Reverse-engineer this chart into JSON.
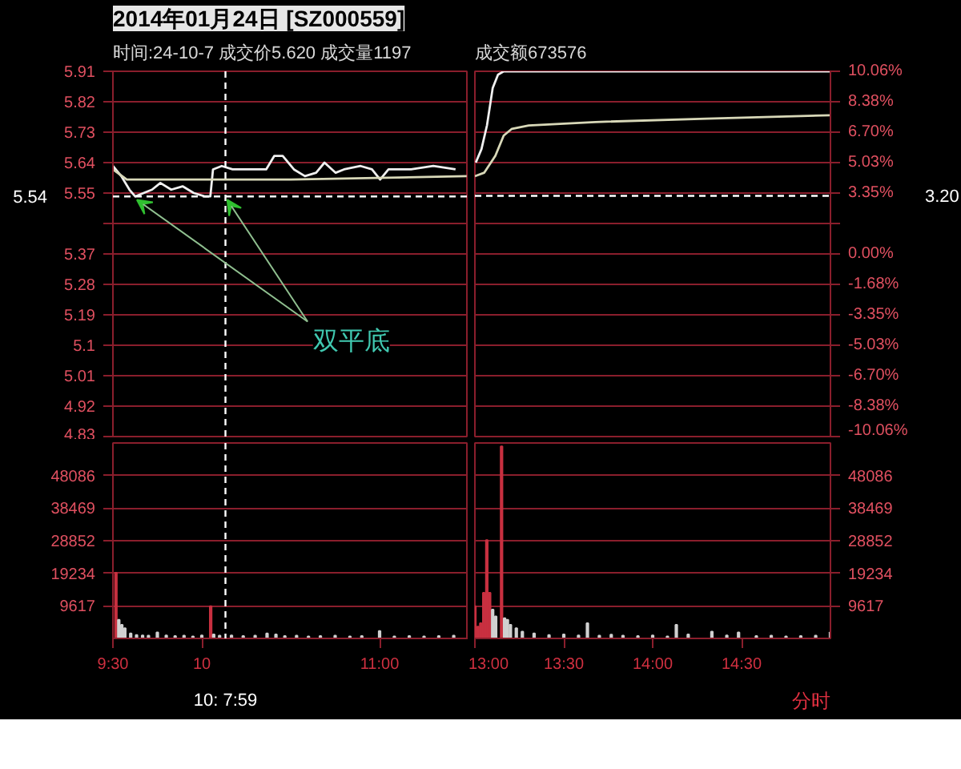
{
  "chart_data": [
    {
      "type": "line",
      "title": "2014年01月24日 [SZ000559]",
      "xlim": [
        9.5,
        11.5
      ],
      "tick_labels": "y",
      "grid": "y",
      "ylim": [
        4.83,
        5.91
      ],
      "yticks": [
        5.91,
        5.82,
        5.73,
        5.64,
        5.55,
        {
          "value": 5.46,
          "label": null
        },
        5.37,
        5.28,
        5.19,
        5.1,
        5.01,
        4.92,
        4.83
      ],
      "series": [
        {
          "color": "#f0f0f0",
          "x": [
            9.5,
            9.547,
            9.593,
            9.625,
            9.672,
            9.72,
            9.767,
            9.828,
            9.892,
            9.955,
            10.017,
            10.048,
            10.063,
            10.112,
            10.173,
            10.237,
            10.298,
            10.362,
            10.408,
            10.455,
            10.518,
            10.58,
            10.643,
            10.69,
            10.753,
            10.8,
            10.893,
            10.957,
            11.003,
            11.05,
            11.177,
            11.302,
            11.427
          ],
          "values": [
            5.63,
            5.6,
            5.56,
            5.54,
            5.55,
            5.56,
            5.58,
            5.56,
            5.57,
            5.55,
            5.54,
            5.54,
            5.62,
            5.63,
            5.62,
            5.62,
            5.62,
            5.62,
            5.66,
            5.66,
            5.62,
            5.6,
            5.61,
            5.64,
            5.61,
            5.62,
            5.63,
            5.62,
            5.59,
            5.62,
            5.62,
            5.63,
            5.62
          ]
        },
        {
          "color": "#d8d8b8",
          "x": [
            9.5,
            9.578,
            9.672,
            10.5,
            11.49
          ],
          "values": [
            5.62,
            5.59,
            5.59,
            5.59,
            5.6
          ]
        }
      ],
      "ref_lines": [
        {
          "axis": "x",
          "value": 10.133,
          "color": "#ffffff",
          "line_style": "dashed"
        },
        {
          "axis": "y",
          "value": 5.54,
          "label": "5.54",
          "color": "#ffffff",
          "line_style": "dashed"
        }
      ],
      "annotations": [
        "时间:24-10-7   成交价5.620   成交量1197",
        {
          "text": "双平底",
          "x": 9.625,
          "y": 5.54
        }
      ]
    },
    {
      "type": "line",
      "xlim": [
        13,
        15
      ],
      "tick_labels": false,
      "grid": "y",
      "ylim": [
        4.83,
        5.91
      ],
      "yticks": [
        5.91,
        5.82,
        5.73,
        5.64,
        5.55,
        5.46,
        5.37,
        5.28,
        5.19,
        5.1,
        5.01,
        4.92,
        4.83
      ],
      "y2lim": [
        -10.06,
        10.06
      ],
      "y2ticks": [
        {
          "value": 10.06,
          "label": "10.06%"
        },
        {
          "value": 8.38,
          "label": "8.38%"
        },
        {
          "value": 6.7,
          "label": "6.70%"
        },
        {
          "value": 5.03,
          "label": "5.03%"
        },
        {
          "value": 3.35,
          "label": "3.35%"
        },
        {
          "value": 1.68,
          "label": null
        },
        {
          "value": 0,
          "label": "0.00%"
        },
        {
          "value": -1.68,
          "label": "-1.68%"
        },
        {
          "value": -3.35,
          "label": "-3.35%"
        },
        {
          "value": -5.03,
          "label": "-5.03%"
        },
        {
          "value": -6.7,
          "label": "-6.70%"
        },
        {
          "value": -8.38,
          "label": "-8.38%"
        },
        {
          "value": -10.06,
          "label": "-10.06%"
        }
      ],
      "series": [
        {
          "color": "#f0f0f0",
          "x": [
            13.005,
            13.037,
            13.068,
            13.1,
            13.13,
            13.162,
            15
          ],
          "values": [
            5.64,
            5.68,
            5.75,
            5.86,
            5.9,
            5.91,
            5.91
          ]
        },
        {
          "color": "#d8d8b8",
          "x": [
            13.0,
            13.052,
            13.115,
            13.162,
            13.208,
            13.303,
            13.678,
            14.305,
            15
          ],
          "values": [
            5.6,
            5.61,
            5.66,
            5.72,
            5.74,
            5.75,
            5.76,
            5.77,
            5.78
          ]
        }
      ],
      "ref_lines": [
        {
          "axis": "y2",
          "value": 3.2,
          "label": "3.20",
          "color": "#ffffff",
          "line_style": "dashed"
        }
      ],
      "annotations": [
        "成交额673576"
      ]
    },
    {
      "type": "bar",
      "xlim": [
        9.5,
        11.5
      ],
      "grid": "y",
      "xticks": [
        {
          "value": 9.5,
          "label": "9:30"
        },
        {
          "value": 10,
          "label": "10"
        },
        {
          "value": 11,
          "label": "11:00"
        }
      ],
      "ylim": [
        0,
        57702
      ],
      "yticks": [
        9617,
        19234,
        28852,
        38469,
        48086
      ],
      "x": [
        9.517,
        9.533,
        9.55,
        9.567,
        9.6,
        9.633,
        9.667,
        9.7,
        9.75,
        9.8,
        9.85,
        9.9,
        9.95,
        10.0,
        10.05,
        10.067,
        10.1,
        10.167,
        10.233,
        10.3,
        10.367,
        10.417,
        10.467,
        10.533,
        10.6,
        10.667,
        10.75,
        10.833,
        10.9,
        11.0,
        11.083,
        11.167,
        11.25,
        11.333,
        11.417
      ],
      "values": [
        19400,
        5500,
        4000,
        3000,
        1500,
        1000,
        900,
        800,
        1800,
        900,
        700,
        800,
        600,
        900,
        9500,
        1200,
        800,
        900,
        700,
        800,
        1500,
        1200,
        700,
        800,
        600,
        700,
        800,
        600,
        700,
        2200,
        600,
        700,
        600,
        700,
        800
      ],
      "colors": [
        "#c83040",
        "#d0d0d0",
        "#d0d0d0",
        "#d0d0d0",
        "#d0d0d0",
        "#d0d0d0",
        "#d0d0d0",
        "#d0d0d0",
        "#d0d0d0",
        "#d0d0d0",
        "#d0d0d0",
        "#d0d0d0",
        "#d0d0d0",
        "#d0d0d0",
        "#c83040",
        "#d0d0d0",
        "#d0d0d0",
        "#d0d0d0",
        "#d0d0d0",
        "#d0d0d0",
        "#d0d0d0",
        "#d0d0d0",
        "#d0d0d0",
        "#d0d0d0",
        "#d0d0d0",
        "#d0d0d0",
        "#d0d0d0",
        "#d0d0d0",
        "#d0d0d0",
        "#d0d0d0",
        "#d0d0d0",
        "#d0d0d0",
        "#d0d0d0",
        "#d0d0d0",
        "#d0d0d0"
      ],
      "ref_lines": [
        {
          "axis": "x",
          "value": 10.133,
          "label": "10: 7:59",
          "color": "#ffffff",
          "line_style": "dashed"
        }
      ]
    },
    {
      "type": "bar",
      "xlim": [
        13,
        15
      ],
      "grid": "y",
      "xticks": [
        {
          "value": 13,
          "label": "13:00"
        },
        {
          "value": 13.5,
          "label": "13:30"
        },
        {
          "value": 14,
          "label": "14:00"
        },
        {
          "value": 14.5,
          "label": "14:30"
        }
      ],
      "ylim": [
        0,
        57702
      ],
      "yticks": [
        9617,
        19234,
        28852,
        38469,
        48086
      ],
      "x": [
        13.0,
        13.017,
        13.033,
        13.05,
        13.067,
        13.083,
        13.1,
        13.117,
        13.15,
        13.167,
        13.183,
        13.2,
        13.233,
        13.267,
        13.333,
        13.417,
        13.5,
        13.583,
        13.633,
        13.7,
        13.767,
        13.833,
        13.917,
        14.0,
        14.083,
        14.133,
        14.2,
        14.333,
        14.417,
        14.483,
        14.583,
        14.667,
        14.75,
        14.833,
        14.917,
        15.0
      ],
      "values": [
        9500,
        3500,
        4500,
        13500,
        29000,
        13500,
        8500,
        6500,
        56700,
        6000,
        5500,
        4000,
        3000,
        2000,
        1500,
        1000,
        1200,
        900,
        4500,
        800,
        1100,
        800,
        700,
        900,
        600,
        4000,
        1200,
        2000,
        900,
        1800,
        700,
        800,
        600,
        700,
        800,
        1800
      ],
      "colors": [
        "#c83040",
        "#c83040",
        "#c83040",
        "#c83040",
        "#c83040",
        "#c83040",
        "#d0d0d0",
        "#d0d0d0",
        "#c83040",
        "#d0d0d0",
        "#d0d0d0",
        "#d0d0d0",
        "#d0d0d0",
        "#d0d0d0",
        "#d0d0d0",
        "#d0d0d0",
        "#d0d0d0",
        "#d0d0d0",
        "#d0d0d0",
        "#d0d0d0",
        "#d0d0d0",
        "#d0d0d0",
        "#d0d0d0",
        "#d0d0d0",
        "#d0d0d0",
        "#d0d0d0",
        "#d0d0d0",
        "#d0d0d0",
        "#d0d0d0",
        "#d0d0d0",
        "#d0d0d0",
        "#d0d0d0",
        "#d0d0d0",
        "#d0d0d0",
        "#d0d0d0",
        "#d0d0d0"
      ],
      "annotations": [
        "分时"
      ]
    }
  ]
}
